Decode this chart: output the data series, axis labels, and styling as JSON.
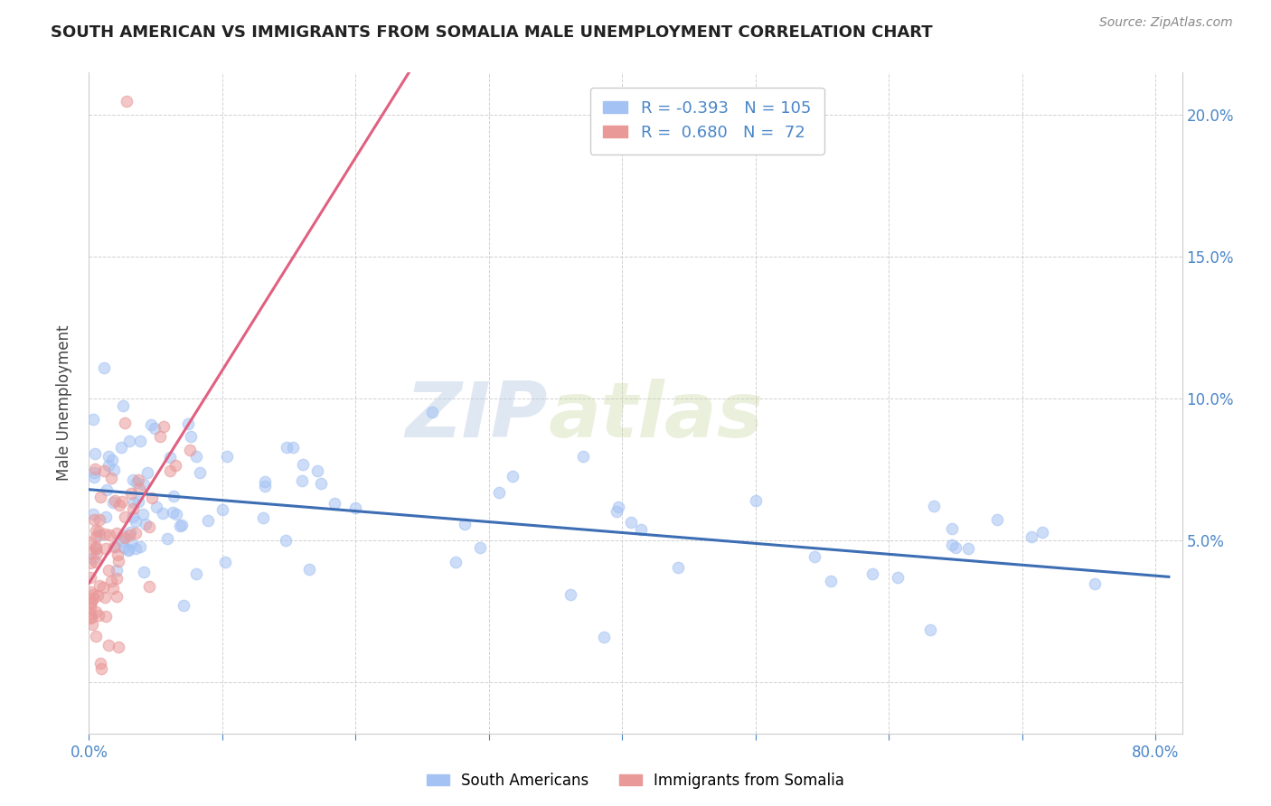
{
  "title": "SOUTH AMERICAN VS IMMIGRANTS FROM SOMALIA MALE UNEMPLOYMENT CORRELATION CHART",
  "source": "Source: ZipAtlas.com",
  "ylabel": "Male Unemployment",
  "watermark_left": "ZIP",
  "watermark_right": "atlas",
  "legend": {
    "blue_R": "-0.393",
    "blue_N": "105",
    "pink_R": "0.680",
    "pink_N": "72"
  },
  "blue_color": "#a4c2f4",
  "pink_color": "#ea9999",
  "blue_line_color": "#3d6eb4",
  "pink_line_color": "#e06080",
  "xlim": [
    0.0,
    0.82
  ],
  "ylim": [
    -0.018,
    0.215
  ],
  "blue_regression": {
    "slope": -0.038,
    "intercept": 0.068
  },
  "pink_regression": {
    "slope": 0.75,
    "intercept": 0.035
  }
}
